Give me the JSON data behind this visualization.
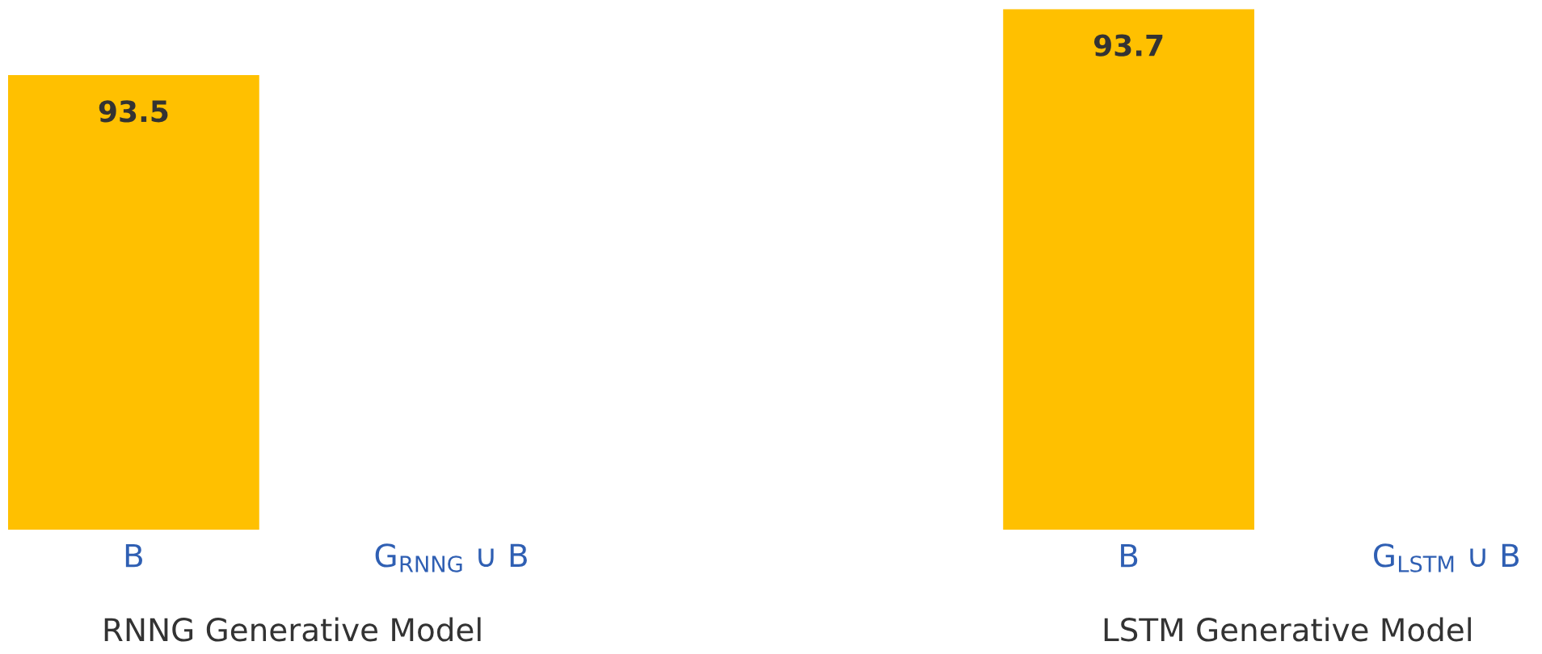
{
  "chart_data": {
    "type": "bar",
    "categories": [
      "B",
      "G$_{RNNG}$ ∪ B",
      "B",
      "G$_{LSTM}$ ∪ B"
    ],
    "values": [
      93.5,
      null,
      93.7,
      null
    ],
    "color": "#ffc000",
    "ylim": [
      92.12,
      93.7
    ],
    "tick_labels": "x",
    "data_labels": true,
    "grid": false,
    "annotations": [
      "RNNG Generative Model",
      "LSTM Generative Model"
    ]
  }
}
